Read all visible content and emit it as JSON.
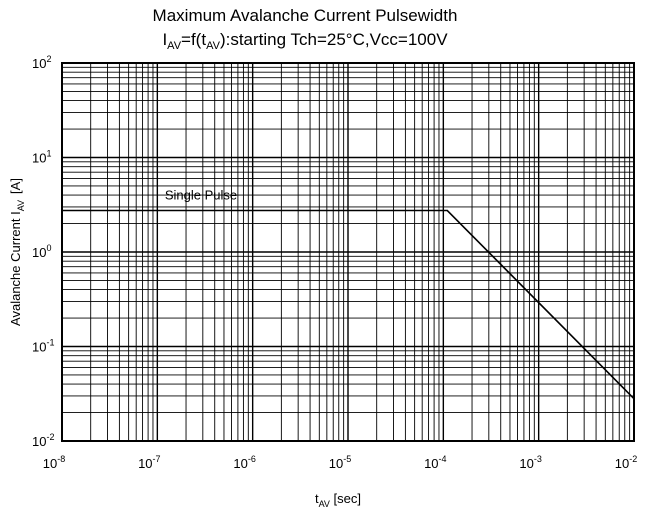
{
  "chart_data": {
    "type": "line",
    "title": "Maximum Avalanche Current Pulsewidth",
    "subtitle": {
      "lead": "I",
      "lead_sub": "AV",
      "mid1": "=f(t",
      "mid_sub": "AV",
      "tail": "):starting Tch=25°C,Vcc=100V"
    },
    "xlabel": {
      "main": "t",
      "sub": "AV",
      "unit": " [sec]"
    },
    "ylabel": {
      "main": "Avalanche Current I",
      "sub": "AV",
      "unit": "[A]"
    },
    "xscale": "log",
    "yscale": "log",
    "xlim": [
      1e-08,
      0.01
    ],
    "ylim": [
      0.01,
      100
    ],
    "grid": true,
    "x_ticks": [
      {
        "base": "10",
        "exp": "-8"
      },
      {
        "base": "10",
        "exp": "-7"
      },
      {
        "base": "10",
        "exp": "-6"
      },
      {
        "base": "10",
        "exp": "-5"
      },
      {
        "base": "10",
        "exp": "-4"
      },
      {
        "base": "10",
        "exp": "-3"
      },
      {
        "base": "10",
        "exp": "-2"
      }
    ],
    "y_ticks": [
      {
        "base": "10",
        "exp": "-2"
      },
      {
        "base": "10",
        "exp": "-1"
      },
      {
        "base": "10",
        "exp": "0"
      },
      {
        "base": "10",
        "exp": "1"
      },
      {
        "base": "10",
        "exp": "2"
      }
    ],
    "series": [
      {
        "name": "Single Pulse",
        "x": [
          1e-08,
          0.00011,
          0.01
        ],
        "y": [
          2.75,
          2.75,
          0.028
        ]
      }
    ],
    "annotation": {
      "text": "Single Pulse",
      "x": 1.2e-07,
      "y": 3.6
    }
  }
}
